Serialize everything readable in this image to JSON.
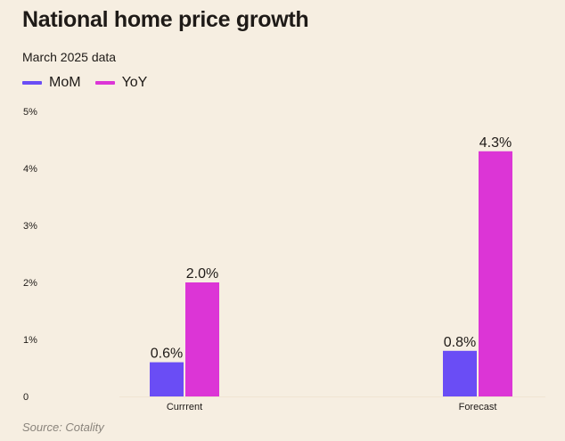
{
  "chart_data": {
    "type": "bar",
    "title": "National home price growth",
    "subtitle": "March 2025 data",
    "categories": [
      "Currrent",
      "Forecast"
    ],
    "series": [
      {
        "name": "MoM",
        "values": [
          0.6,
          0.8
        ],
        "labels": [
          "0.6%",
          "0.8%"
        ],
        "color": "#6a4df5"
      },
      {
        "name": "YoY",
        "values": [
          2.0,
          4.3
        ],
        "labels": [
          "2.0%",
          "4.3%"
        ],
        "color": "#dc35d6"
      }
    ],
    "yticks": [
      0,
      1,
      2,
      3,
      4,
      5
    ],
    "ytick_labels": [
      "0",
      "1%",
      "2%",
      "3%",
      "4%",
      "5%"
    ],
    "ylim": [
      0,
      5
    ],
    "xlabel": "",
    "ylabel": "",
    "grid": false,
    "legend": "top-left",
    "source": "Source: Cotality"
  }
}
